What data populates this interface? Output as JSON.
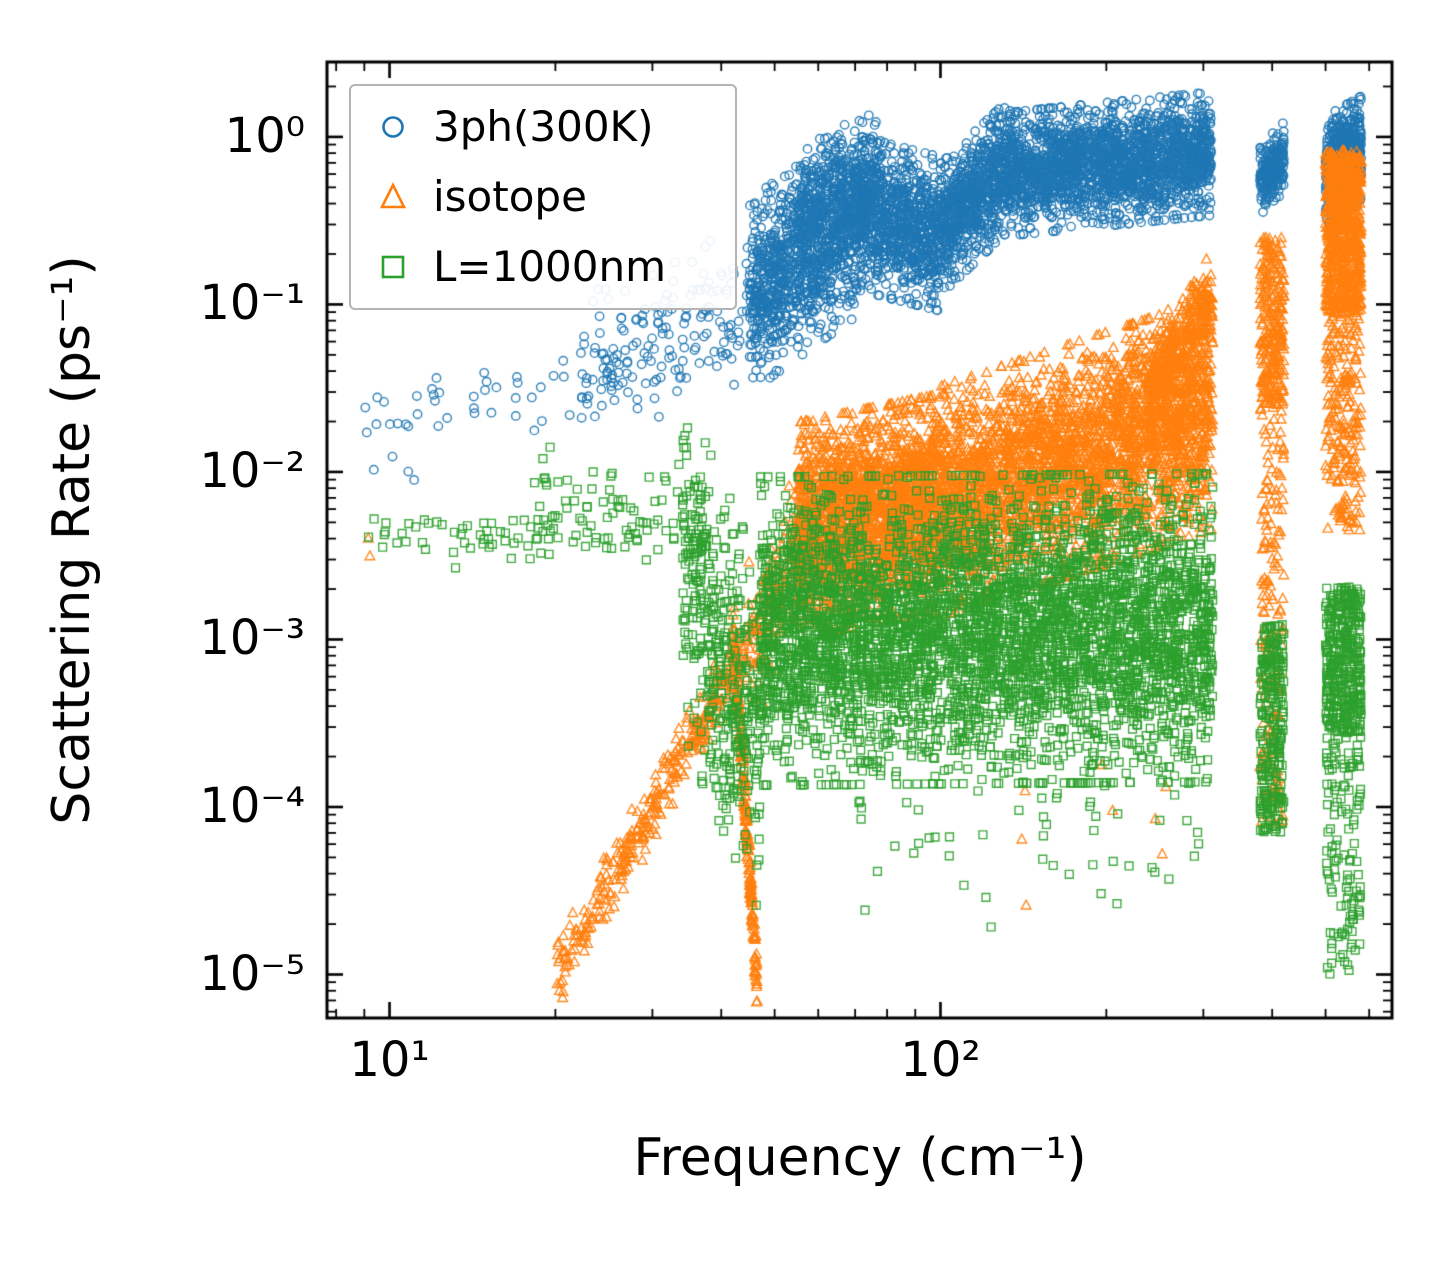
{
  "figure": {
    "background": "#ffffff"
  },
  "chart_data": {
    "type": "scatter",
    "title": "",
    "xlabel": "Frequency (cm⁻¹)",
    "ylabel": "Scattering Rate (ps⁻¹)",
    "xscale": "log",
    "yscale": "log",
    "xlim": [
      7.7,
      660
    ],
    "ylim": [
      5.5e-06,
      2.8
    ],
    "grid": false,
    "xticks": [
      {
        "v": 10,
        "label": "10¹"
      },
      {
        "v": 100,
        "label": "10²"
      }
    ],
    "yticks": [
      {
        "v": 1,
        "label": "10⁰"
      },
      {
        "v": 0.1,
        "label": "10⁻¹"
      },
      {
        "v": 0.01,
        "label": "10⁻²"
      },
      {
        "v": 0.001,
        "label": "10⁻³"
      },
      {
        "v": 0.0001,
        "label": "10⁻⁴"
      },
      {
        "v": 1e-05,
        "label": "10⁻⁵"
      }
    ],
    "legend": {
      "position": "upper-left",
      "entries": [
        "3ph(300K)",
        "isotope",
        "L=1000nm"
      ]
    },
    "series": [
      {
        "name": "3ph(300K)",
        "marker": "circle",
        "color": "#1f77b4",
        "bands": [
          {
            "x": [
              9,
              26
            ],
            "logy": [
              -1.7,
              -1.42
            ],
            "s": 0.13,
            "n": 45
          },
          {
            "x": [
              10.8,
              11.3
            ],
            "logy": [
              -2.05,
              -2.05
            ],
            "s": 0.03,
            "n": 2
          },
          {
            "x": [
              22,
              45
            ],
            "logy": [
              -1.42,
              -0.98
            ],
            "s": 0.2,
            "n": 170
          },
          {
            "x": [
              45,
              70
            ],
            "logy": [
              -0.95,
              -0.5
            ],
            "s": 0.25,
            "n": 1000
          },
          {
            "x": [
              55,
              78
            ],
            "logy": [
              -0.5,
              -0.22
            ],
            "s": 0.18,
            "n": 400
          },
          {
            "x": [
              70,
              100
            ],
            "logy": [
              -0.45,
              -0.58
            ],
            "s": 0.2,
            "n": 900
          },
          {
            "x": [
              100,
              135
            ],
            "logy": [
              -0.55,
              -0.15
            ],
            "s": 0.17,
            "n": 800
          },
          {
            "x": [
              135,
              310
            ],
            "logy": [
              -0.22,
              -0.1
            ],
            "s": 0.16,
            "n": 2000
          },
          {
            "x": [
              380,
              420
            ],
            "logy": [
              -0.26,
              -0.12
            ],
            "s": 0.09,
            "n": 240
          },
          {
            "x": [
              500,
              580
            ],
            "logy": [
              -0.2,
              -0.08
            ],
            "s": 0.14,
            "n": 600
          }
        ]
      },
      {
        "name": "isotope",
        "marker": "triangle",
        "color": "#ff7f0e",
        "bands": [
          {
            "x": [
              9,
              9.6
            ],
            "logy": [
              -2.45,
              -2.45
            ],
            "s": 0.05,
            "n": 2
          },
          {
            "x": [
              20,
              44
            ],
            "logy": [
              -5.02,
              -3.05
            ],
            "s": 0.09,
            "n": 320
          },
          {
            "x": [
              42,
              46.5
            ],
            "logy": [
              -2.9,
              -5.05
            ],
            "s": 0.08,
            "n": 220
          },
          {
            "x": [
              44,
              56
            ],
            "logy": [
              -3.1,
              -2.45
            ],
            "s": 0.22,
            "n": 160
          },
          {
            "x": [
              55,
              100
            ],
            "logy": [
              -2.35,
              -2.18
            ],
            "s": 0.28,
            "n": 2000
          },
          {
            "x": [
              100,
              312
            ],
            "logy": [
              -2.18,
              -1.65
            ],
            "s": 0.3,
            "n": 2800
          },
          {
            "x": [
              235,
              312
            ],
            "logy": [
              -1.55,
              -0.98
            ],
            "s": 0.14,
            "n": 380
          },
          {
            "x": [
              140,
              260
            ],
            "logy": [
              -4.6,
              -3.7
            ],
            "u": 1,
            "n": 8
          },
          {
            "x": [
              380,
              420
            ],
            "logy": [
              -4.1,
              -0.6
            ],
            "u": 1,
            "n": 240
          },
          {
            "x": [
              380,
              420
            ],
            "logy": [
              -1.6,
              -0.6
            ],
            "u": 1,
            "n": 200
          },
          {
            "x": [
              500,
              580
            ],
            "logy": [
              -1.05,
              -0.08
            ],
            "u": 1,
            "n": 750
          },
          {
            "x": [
              500,
              580
            ],
            "logy": [
              -2.35,
              -1.05
            ],
            "u": 1,
            "n": 220
          }
        ]
      },
      {
        "name": "L=1000nm",
        "marker": "square",
        "color": "#2ca02c",
        "bands": [
          {
            "x": [
              9,
              40
            ],
            "logy": [
              -2.37,
              -2.37
            ],
            "s": 0.09,
            "n": 100
          },
          {
            "x": [
              18,
              38
            ],
            "logy": [
              -2.08,
              -2.2
            ],
            "s": 0.12,
            "n": 45
          },
          {
            "x": [
              34,
              47
            ],
            "logy": [
              -2.55,
              -3.6
            ],
            "s": 0.45,
            "n": 420
          },
          {
            "x": [
              47,
              312
            ],
            "logy": [
              -2.95,
              -2.93
            ],
            "s": 0.4,
            "n": 4300
          },
          {
            "x": [
              70,
              312
            ],
            "logy": [
              -3.95,
              -4.15
            ],
            "s": 0.33,
            "n": 80
          },
          {
            "x": [
              380,
              420
            ],
            "logy": [
              -4.15,
              -2.9
            ],
            "u": 1,
            "n": 260
          },
          {
            "x": [
              500,
              580
            ],
            "logy": [
              -3.55,
              -2.68
            ],
            "u": 1,
            "n": 380
          },
          {
            "x": [
              500,
              580
            ],
            "logy": [
              -5.0,
              -3.55
            ],
            "u": 1,
            "n": 130
          }
        ]
      }
    ]
  }
}
